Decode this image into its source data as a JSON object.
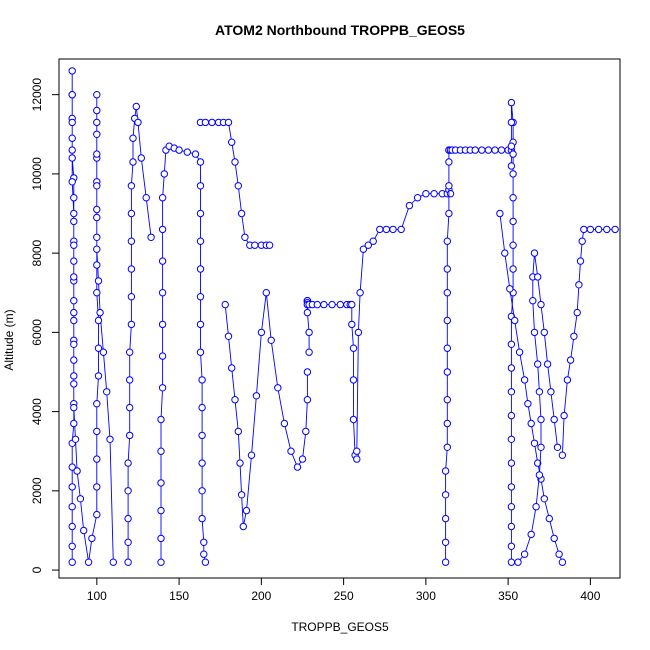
{
  "chart_data": {
    "type": "line",
    "title": "ATOM2 Northbound TROPPB_GEOS5",
    "xlabel": "TROPPB_GEOS5",
    "ylabel": "Altitude (m)",
    "xlim": [
      77,
      418
    ],
    "ylim": [
      -200,
      12900
    ],
    "x_ticks": [
      100,
      150,
      200,
      250,
      300,
      350,
      400
    ],
    "y_ticks": [
      0,
      2000,
      4000,
      6000,
      8000,
      10000,
      12000
    ],
    "marker": "open-circle",
    "series_color": "#0000ff",
    "series": [
      {
        "x": [
          85,
          85,
          85,
          85,
          85,
          85,
          85,
          86,
          86,
          86,
          86,
          86,
          86,
          86,
          86,
          86,
          86,
          86,
          86,
          86,
          85,
          85,
          85,
          85,
          85,
          85,
          85,
          85,
          85,
          86,
          86,
          86,
          86,
          86,
          86,
          86,
          87,
          88,
          90,
          92,
          95,
          97,
          100,
          100,
          100,
          100,
          100,
          101,
          101,
          101,
          100,
          100,
          100,
          100,
          100,
          100,
          100,
          100,
          100,
          100,
          100,
          100,
          100,
          100,
          101,
          102,
          104,
          106,
          108,
          110
        ],
        "y": [
          200,
          600,
          1100,
          1600,
          2100,
          2600,
          3200,
          3700,
          4200,
          4700,
          5300,
          5800,
          6300,
          6800,
          7300,
          7800,
          8300,
          8800,
          9400,
          9900,
          10400,
          10900,
          11400,
          12000,
          12600,
          12000,
          11300,
          10600,
          9800,
          9000,
          8200,
          7400,
          6500,
          5700,
          4900,
          4100,
          3300,
          2500,
          1800,
          1000,
          200,
          800,
          1400,
          2100,
          2800,
          3500,
          4200,
          4900,
          5600,
          6300,
          7000,
          7700,
          8400,
          9100,
          9800,
          10400,
          11000,
          11600,
          12000,
          11300,
          10500,
          9700,
          8900,
          8100,
          7300,
          6500,
          5500,
          4500,
          3300,
          200
        ]
      },
      {
        "x": [
          119,
          119,
          119,
          119,
          119,
          120,
          120,
          120,
          120,
          121,
          121,
          121,
          121,
          121,
          121,
          122,
          122,
          123,
          124,
          125,
          127,
          130,
          133
        ],
        "y": [
          200,
          700,
          1300,
          2000,
          2700,
          3400,
          4100,
          4800,
          5500,
          6200,
          6900,
          7600,
          8300,
          9000,
          9700,
          10300,
          10900,
          11400,
          11700,
          11300,
          10400,
          9400,
          8400
        ]
      },
      {
        "x": [
          139,
          139,
          139,
          139,
          139,
          139,
          140,
          140,
          140,
          140,
          140,
          140,
          140,
          141,
          142,
          144,
          147,
          150,
          155,
          160,
          163,
          163,
          163,
          163,
          163,
          163,
          163,
          163,
          164,
          164,
          164,
          164,
          164,
          164,
          165,
          165,
          166
        ],
        "y": [
          200,
          800,
          1500,
          2200,
          3000,
          3800,
          4600,
          5400,
          6200,
          7000,
          7800,
          8600,
          9400,
          10000,
          10600,
          10700,
          10650,
          10600,
          10550,
          10500,
          10300,
          9700,
          9000,
          8300,
          7600,
          6900,
          6200,
          5500,
          4800,
          4100,
          3400,
          2700,
          2000,
          1300,
          700,
          400,
          200
        ]
      },
      {
        "x": [
          163,
          166,
          170,
          174,
          177,
          180,
          182,
          184,
          186,
          188,
          190,
          193,
          196,
          200,
          203,
          205
        ],
        "y": [
          11300,
          11300,
          11300,
          11300,
          11300,
          11300,
          10800,
          10300,
          9700,
          9000,
          8400,
          8200,
          8200,
          8200,
          8200,
          8200
        ]
      },
      {
        "x": [
          178,
          180,
          182,
          184,
          186,
          187,
          188,
          189,
          191,
          194,
          197,
          200,
          203,
          206,
          210,
          214,
          218,
          222,
          225,
          227,
          228,
          228
        ],
        "y": [
          6700,
          5900,
          5100,
          4300,
          3500,
          2700,
          1900,
          1100,
          1500,
          2900,
          4400,
          6000,
          7000,
          5800,
          4600,
          3700,
          3000,
          2600,
          2800,
          3500,
          4300,
          5000
        ]
      },
      {
        "x": [
          229,
          229,
          228,
          228,
          228,
          228,
          228,
          228,
          228,
          229,
          231,
          234,
          238,
          243,
          248,
          252,
          254,
          255,
          255,
          256,
          256,
          256,
          257,
          258,
          258,
          259,
          260,
          262,
          265,
          268,
          272,
          276,
          280,
          285,
          290,
          295,
          300,
          305,
          310,
          313,
          314,
          315
        ],
        "y": [
          5500,
          6000,
          6500,
          6800,
          6800,
          6800,
          6750,
          6700,
          6700,
          6700,
          6700,
          6700,
          6700,
          6700,
          6700,
          6700,
          6700,
          6700,
          6200,
          5600,
          4800,
          3800,
          2900,
          2800,
          3000,
          6000,
          7000,
          8100,
          8200,
          8300,
          8600,
          8600,
          8600,
          8600,
          9200,
          9400,
          9500,
          9500,
          9500,
          9500,
          9600,
          9500
        ]
      },
      {
        "x": [
          312,
          312,
          312,
          312,
          312,
          313,
          313,
          313,
          313,
          313,
          313,
          313,
          313,
          313,
          314,
          314,
          314,
          314,
          314,
          315,
          316,
          318,
          321,
          324,
          327,
          330,
          334,
          338,
          342,
          346,
          350,
          352
        ],
        "y": [
          200,
          700,
          1300,
          1900,
          2500,
          3100,
          3700,
          4300,
          5000,
          5600,
          6300,
          7000,
          7600,
          8300,
          9000,
          9700,
          10300,
          10600,
          10600,
          10600,
          10600,
          10600,
          10600,
          10600,
          10600,
          10600,
          10600,
          10600,
          10600,
          10600,
          10600,
          10600
        ]
      },
      {
        "x": [
          352,
          352,
          352,
          352,
          352,
          352,
          352,
          352,
          352,
          352,
          352,
          352,
          353,
          353,
          353,
          353,
          353,
          353,
          353,
          353,
          353,
          352,
          352,
          352,
          352
        ],
        "y": [
          200,
          600,
          1100,
          1600,
          2100,
          2700,
          3300,
          3900,
          4500,
          5100,
          5700,
          6400,
          7000,
          7600,
          8200,
          8800,
          9400,
          10000,
          10500,
          10800,
          11300,
          11800,
          11300,
          10700,
          10200
        ]
      },
      {
        "x": [
          345,
          348,
          351,
          354,
          357,
          360,
          362,
          364,
          366,
          368,
          370,
          372,
          375,
          378,
          381,
          383
        ],
        "y": [
          9000,
          8000,
          7100,
          6300,
          5500,
          4800,
          4200,
          3700,
          3200,
          2700,
          2300,
          1800,
          1300,
          800,
          400,
          200
        ]
      },
      {
        "x": [
          383,
          384,
          386,
          388,
          390,
          392,
          393,
          394,
          395,
          396,
          400,
          405,
          410,
          415
        ],
        "y": [
          2900,
          3900,
          4800,
          5300,
          5900,
          6500,
          7200,
          7800,
          8300,
          8600,
          8600,
          8600,
          8600,
          8600
        ]
      },
      {
        "x": [
          356,
          360,
          364,
          367,
          369,
          370,
          370,
          369,
          368,
          366,
          365,
          365,
          366,
          368,
          370,
          372,
          374,
          376,
          378,
          380
        ],
        "y": [
          200,
          400,
          900,
          1600,
          2400,
          3100,
          3800,
          4500,
          5200,
          6000,
          6800,
          7400,
          8000,
          7400,
          6700,
          6000,
          5200,
          4500,
          3800,
          3100
        ]
      }
    ]
  }
}
